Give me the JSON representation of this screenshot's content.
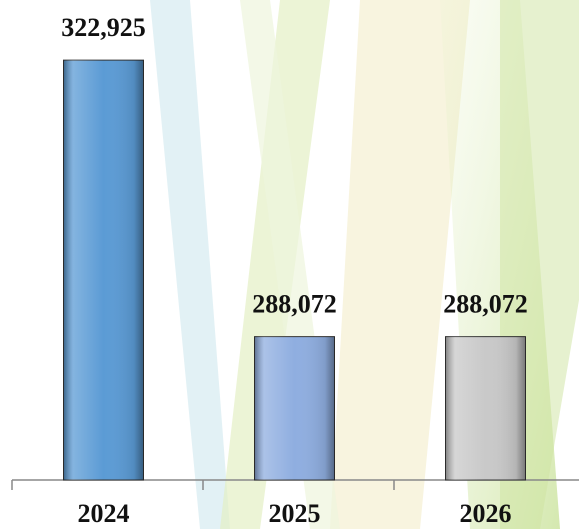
{
  "chart_data": {
    "type": "bar",
    "categories": [
      "2024",
      "2025",
      "2026"
    ],
    "values": [
      322925,
      288072,
      288072
    ],
    "value_labels": [
      "322,925",
      "288,072",
      "288,072"
    ],
    "colors": [
      "#5b9bd5",
      "#8faee0",
      "#c9c9c9"
    ],
    "ylim": [
      270000,
      330000
    ]
  }
}
